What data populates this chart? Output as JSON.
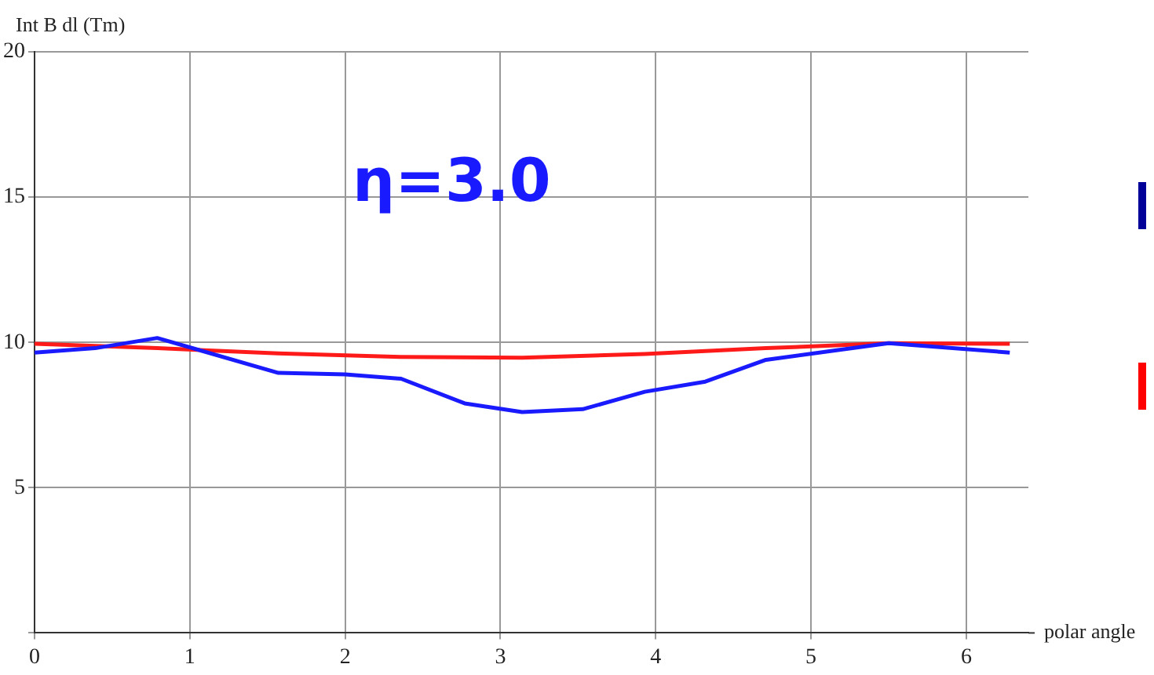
{
  "chart_data": {
    "type": "line",
    "xlabel": "polar angle",
    "ylabel": "Int B dl (Tm)",
    "annotations": [
      "η=3.0"
    ],
    "xlim": [
      0,
      6.4
    ],
    "xticks": [
      0,
      1,
      2,
      3,
      4,
      5,
      6
    ],
    "ylim": [
      0,
      20
    ],
    "yticks": [
      {
        "value": 0,
        "label": null
      },
      5,
      10,
      15,
      20
    ],
    "grid": true,
    "marker": "none",
    "line_style": "solid",
    "series": [
      {
        "color": "#1a1aff",
        "x": [
          0,
          0.39,
          0.79,
          1.57,
          2.0,
          2.36,
          2.77,
          3.14,
          3.53,
          3.93,
          4.32,
          4.71,
          5.5,
          6.28
        ],
        "values": [
          9.65,
          9.8,
          10.15,
          8.95,
          8.9,
          8.75,
          7.9,
          7.6,
          7.7,
          8.3,
          8.65,
          9.4,
          9.97,
          9.65
        ]
      },
      {
        "color": "#ff1a1a",
        "x": [
          0,
          0.79,
          1.57,
          2.36,
          3.14,
          3.93,
          4.71,
          5.5,
          6.28
        ],
        "values": [
          9.95,
          9.8,
          9.62,
          9.5,
          9.47,
          9.6,
          9.8,
          9.97,
          9.95
        ]
      }
    ]
  }
}
